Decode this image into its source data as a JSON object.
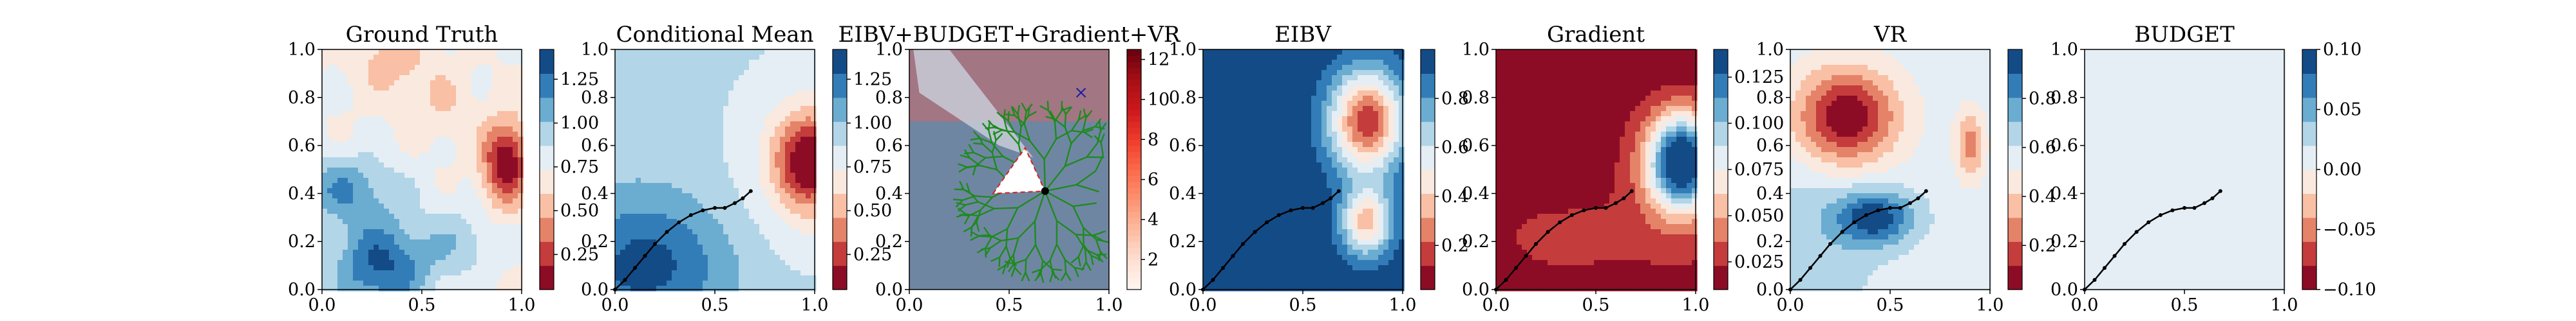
{
  "chart_data": [
    {
      "type": "heatmap",
      "title": "Ground Truth",
      "xlim": [
        0,
        1
      ],
      "ylim": [
        0,
        1
      ],
      "xticks": [
        "0.0",
        "0.5",
        "1.0"
      ],
      "yticks": [
        "0.0",
        "0.2",
        "0.4",
        "0.6",
        "0.8",
        "1.0"
      ],
      "colormap": "RdBu",
      "colorbar_range": [
        0.05,
        1.42
      ],
      "colorbar_ticks": [
        "0.25",
        "0.50",
        "0.75",
        "1.00",
        "1.25"
      ]
    },
    {
      "type": "heatmap",
      "title": "Conditional Mean",
      "xlim": [
        0,
        1
      ],
      "ylim": [
        0,
        1
      ],
      "xticks": [
        "0.0",
        "0.5",
        "1.0"
      ],
      "yticks": [
        "0.0",
        "0.2",
        "0.4",
        "0.6",
        "0.8",
        "1.0"
      ],
      "colormap": "RdBu",
      "colorbar_range": [
        0.05,
        1.42
      ],
      "colorbar_ticks": [
        "0.25",
        "0.50",
        "0.75",
        "1.00",
        "1.25"
      ],
      "path": {
        "x": [
          0.0,
          0.05,
          0.1,
          0.15,
          0.2,
          0.26,
          0.32,
          0.38,
          0.44,
          0.5,
          0.55,
          0.6,
          0.64,
          0.68
        ],
        "y": [
          0.0,
          0.04,
          0.09,
          0.14,
          0.19,
          0.24,
          0.28,
          0.31,
          0.33,
          0.34,
          0.34,
          0.36,
          0.38,
          0.41
        ]
      }
    },
    {
      "type": "heatmap",
      "title": "EIBV+BUDGET+Gradient+VR",
      "xlim": [
        0,
        1
      ],
      "ylim": [
        0,
        1
      ],
      "xticks": [
        "0.0",
        "0.5",
        "1.0"
      ],
      "yticks": [
        "0.0",
        "0.2",
        "0.4",
        "0.6",
        "0.8",
        "1.0"
      ],
      "colormap": "Reds",
      "colorbar_range": [
        0.5,
        12.5
      ],
      "colorbar_ticks": [
        "2",
        "4",
        "6",
        "8",
        "10",
        "12"
      ],
      "current_location": [
        0.68,
        0.41
      ],
      "target_marker": [
        0.86,
        0.82
      ],
      "candidate_triangle": [
        [
          0.42,
          0.4
        ],
        [
          0.58,
          0.59
        ],
        [
          0.68,
          0.41
        ]
      ]
    },
    {
      "type": "heatmap",
      "title": "EIBV",
      "xlim": [
        0,
        1
      ],
      "ylim": [
        0,
        1
      ],
      "xticks": [
        "0.0",
        "0.5",
        "1.0"
      ],
      "yticks": [
        "0.0",
        "0.2",
        "0.4",
        "0.6",
        "0.8",
        "1.0"
      ],
      "colormap": "RdBu",
      "colorbar_range": [
        0.02,
        1.0
      ],
      "colorbar_ticks": [
        "0.2",
        "0.4",
        "0.6",
        "0.8"
      ]
    },
    {
      "type": "heatmap",
      "title": "Gradient",
      "xlim": [
        0,
        1
      ],
      "ylim": [
        0,
        1
      ],
      "xticks": [
        "0.0",
        "0.5",
        "1.0"
      ],
      "yticks": [
        "0.0",
        "0.2",
        "0.4",
        "0.6",
        "0.8",
        "1.0"
      ],
      "colormap": "RdBu",
      "colorbar_range": [
        0.01,
        0.14
      ],
      "colorbar_ticks": [
        "0.025",
        "0.050",
        "0.075",
        "0.100",
        "0.125"
      ]
    },
    {
      "type": "heatmap",
      "title": "VR",
      "xlim": [
        0,
        1
      ],
      "ylim": [
        0,
        1
      ],
      "xticks": [
        "0.0",
        "0.5",
        "1.0"
      ],
      "yticks": [
        "0.0",
        "0.2",
        "0.4",
        "0.6",
        "0.8",
        "1.0"
      ],
      "colormap": "RdBu",
      "colorbar_range": [
        0.02,
        1.0
      ],
      "colorbar_ticks": [
        "0.2",
        "0.4",
        "0.6",
        "0.8"
      ]
    },
    {
      "type": "heatmap",
      "title": "BUDGET",
      "xlim": [
        0,
        1
      ],
      "ylim": [
        0,
        1
      ],
      "xticks": [
        "0.0",
        "0.5",
        "1.0"
      ],
      "yticks": [
        "0.0",
        "0.2",
        "0.4",
        "0.6",
        "0.8",
        "1.0"
      ],
      "colormap": "RdBu",
      "colorbar_range": [
        -0.1,
        0.1
      ],
      "colorbar_ticks": [
        "−0.10",
        "−0.05",
        "0.00",
        "0.05",
        "0.10"
      ]
    }
  ]
}
